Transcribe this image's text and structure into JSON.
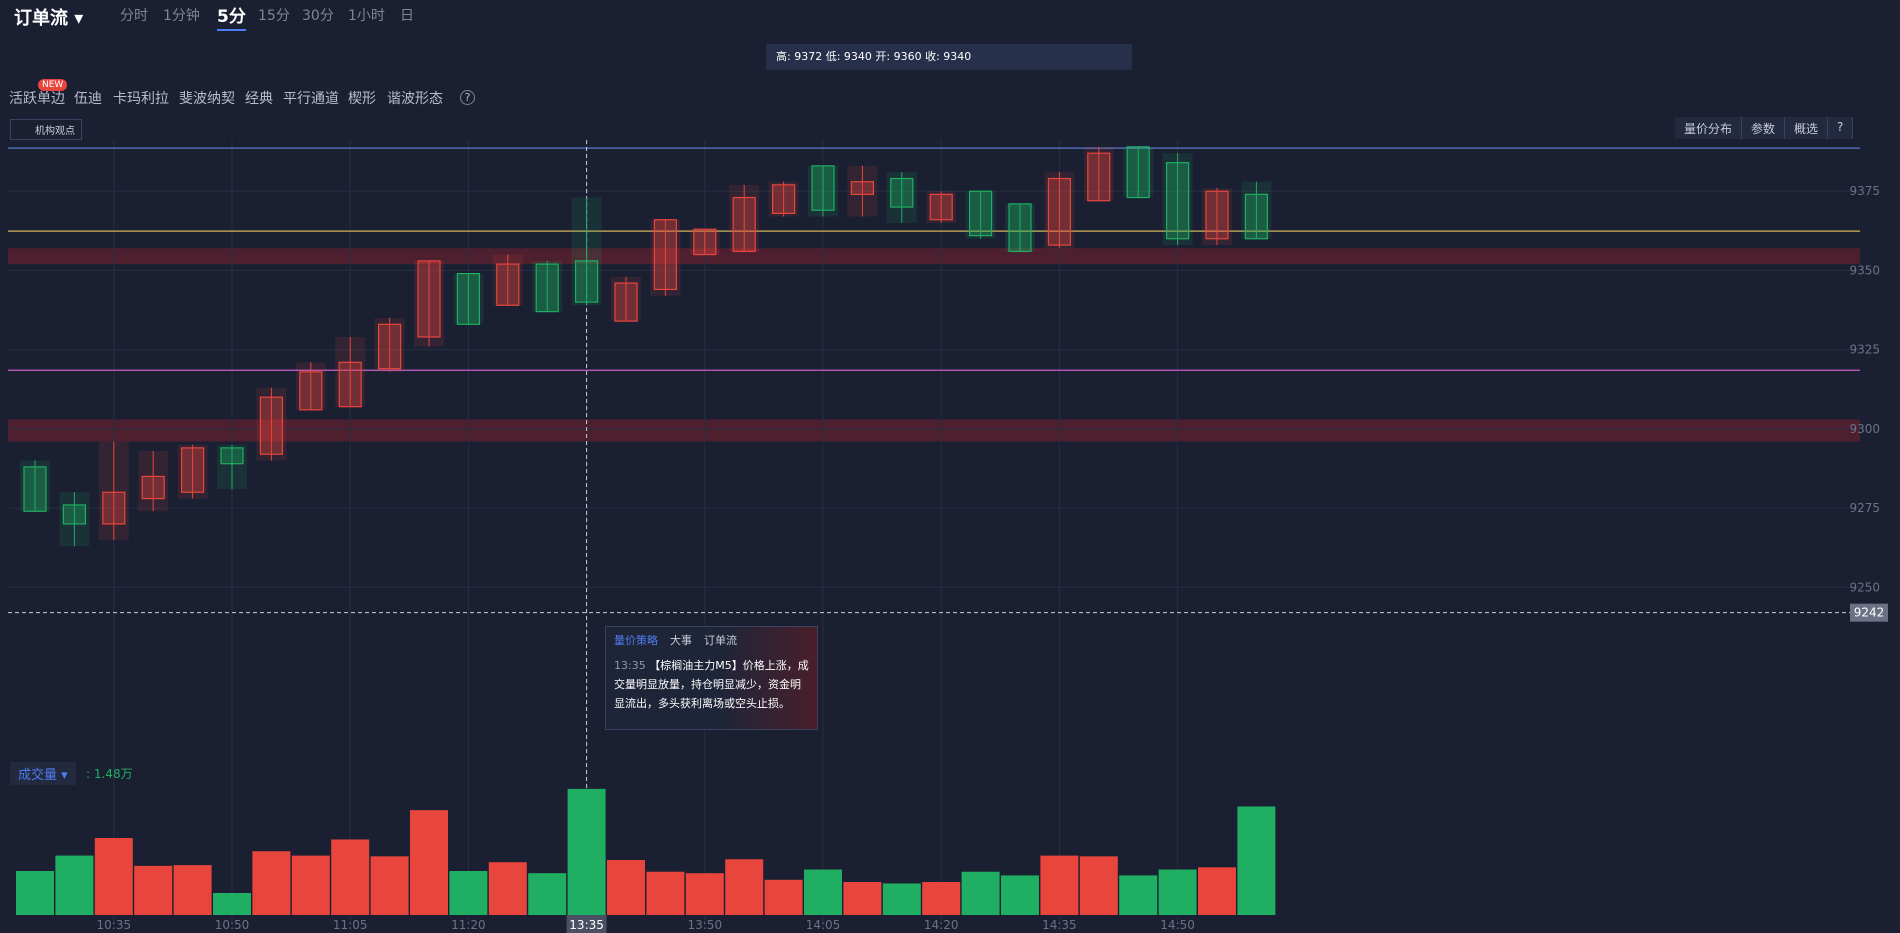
{
  "toolbar": {
    "title": "订单流",
    "periods": [
      "分时",
      "1分钟",
      "5分",
      "15分",
      "30分",
      "1小时",
      "日"
    ],
    "active_period": 2
  },
  "info_bar": "高: 9372 低: 9340 开: 9360 收: 9340",
  "tools": {
    "items": [
      "活跃单边",
      "伍迪",
      "卡玛利拉",
      "斐波纳契",
      "经典",
      "平行通道",
      "楔形",
      "谐波形态"
    ],
    "badge": "NEW",
    "help": "?"
  },
  "institution_view": "机构观点",
  "right_buttons": [
    "量价分布",
    "参数",
    "概选",
    "?"
  ],
  "tooltip": {
    "tabs": [
      "量价策略",
      "大事",
      "订单流"
    ],
    "time": "13:35",
    "text": "【棕榈油主力M5】价格上涨，成交量明显放量，持仓明显减少，资金明显流出，多头获利离场或空头止损。"
  },
  "chart_data": [
    {
      "type": "candlestick",
      "categories": [
        null,
        null,
        "10:35",
        null,
        null,
        "10:50",
        null,
        null,
        "11:05",
        null,
        null,
        "11:20",
        null,
        null,
        "13:35",
        null,
        null,
        "13:50",
        null,
        null,
        "14:05",
        null,
        null,
        "14:20",
        null,
        null,
        "14:35",
        null,
        null,
        "14:50",
        null,
        null
      ],
      "open": [
        9274,
        9270,
        9280,
        9285,
        9294,
        9289,
        9310,
        9318,
        9321,
        9333,
        9353,
        9333,
        9352,
        9337,
        9340,
        9346,
        9366,
        9363,
        9373,
        9377,
        9369,
        9378,
        9370,
        9374,
        9361,
        9356,
        9379,
        9387,
        9373,
        9360,
        9375,
        9360
      ],
      "high": [
        9290,
        9280,
        9296,
        9293,
        9295,
        9295,
        9313,
        9321,
        9329,
        9335,
        9353,
        9349,
        9355,
        9353,
        9373,
        9348,
        9366,
        9363,
        9377,
        9378,
        9383,
        9383,
        9381,
        9375,
        9375,
        9371,
        9381,
        9389,
        9389,
        9387,
        9376,
        9378
      ],
      "low": [
        9274,
        9263,
        9265,
        9274,
        9278,
        9281,
        9290,
        9306,
        9307,
        9318,
        9326,
        9333,
        9339,
        9337,
        9339,
        9334,
        9342,
        9355,
        9356,
        9367,
        9367,
        9367,
        9365,
        9365,
        9360,
        9356,
        9357,
        9372,
        9373,
        9358,
        9358,
        9360
      ],
      "close": [
        9288,
        9276,
        9270,
        9278,
        9280,
        9294,
        9292,
        9306,
        9307,
        9319,
        9329,
        9349,
        9339,
        9352,
        9353,
        9334,
        9344,
        9355,
        9356,
        9368,
        9383,
        9374,
        9379,
        9366,
        9375,
        9371,
        9358,
        9372,
        9389,
        9384,
        9360,
        9374
      ],
      "up_color": "#1fae62",
      "down_color": "#e8453c",
      "ylim": [
        9240,
        9394
      ],
      "yticks": [
        9250,
        9275,
        9300,
        9325,
        9350,
        9375
      ],
      "grid": true,
      "ref_lines": [
        {
          "value": 9388.6,
          "color": "#5b78c9"
        },
        {
          "value": 9362.4,
          "color": "#d4b25a"
        },
        {
          "value": 9318.5,
          "color": "#c760c9"
        }
      ],
      "zones": [
        [
          9352,
          9357
        ],
        [
          9296,
          9303
        ]
      ],
      "crosshair_y": 9242,
      "crosshair_index": 14
    },
    {
      "type": "bar",
      "title": "成交量",
      "legend_value": ": 1.48万",
      "values": [
        6000,
        8100,
        10500,
        6700,
        6800,
        3000,
        8700,
        8100,
        10300,
        8000,
        14300,
        6000,
        7200,
        5700,
        17200,
        7500,
        5900,
        5700,
        7600,
        4800,
        6200,
        4500,
        4300,
        4500,
        5900,
        5400,
        8100,
        8000,
        5400,
        6200,
        6500,
        14800
      ],
      "ylim": [
        0,
        18000
      ]
    }
  ]
}
